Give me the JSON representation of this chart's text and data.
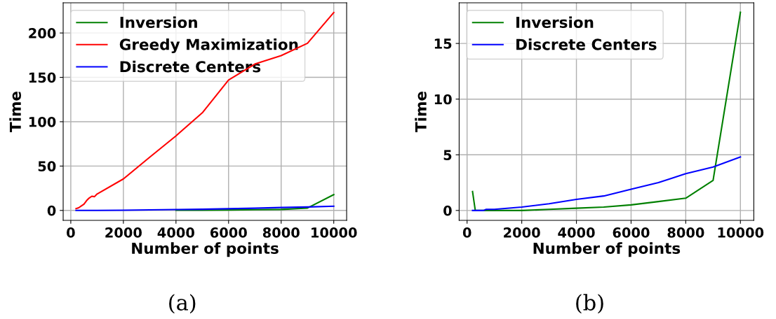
{
  "chart_data": [
    {
      "type": "line",
      "xlabel": "Number of points",
      "ylabel": "Time",
      "annotations": [
        "(a)"
      ],
      "x": [
        200,
        300,
        400,
        500,
        600,
        700,
        800,
        900,
        1000,
        2000,
        3000,
        4000,
        5000,
        6000,
        7000,
        8000,
        9000,
        10000
      ],
      "series": [
        {
          "name": "Inversion",
          "color": "#008000",
          "values": [
            null,
            null,
            null,
            null,
            null,
            null,
            null,
            null,
            null,
            null,
            null,
            0.2,
            0.3,
            0.5,
            0.8,
            1.1,
            2.7,
            17.8
          ]
        },
        {
          "name": "Greedy Maximization",
          "color": "#ff0000",
          "values": [
            2,
            3,
            5,
            7,
            11,
            14,
            16,
            15.5,
            18.5,
            35.5,
            60,
            84,
            110,
            147,
            165,
            174.5,
            188.4,
            223
          ]
        },
        {
          "name": "Discrete Centers",
          "color": "#0000ff",
          "values": [
            0,
            0,
            0,
            0,
            0,
            0.1,
            0.1,
            0.1,
            0.1,
            0.3,
            0.6,
            1.0,
            1.3,
            1.9,
            2.5,
            3.3,
            3.9,
            4.8
          ]
        }
      ],
      "xlim": [
        -290,
        10490
      ],
      "ylim": [
        -11.2,
        234
      ],
      "xticks": [
        0,
        2000,
        4000,
        6000,
        8000,
        10000
      ],
      "yticks": [
        0,
        50,
        100,
        150,
        200
      ],
      "grid": true,
      "legend": "top left",
      "line_style": "solid",
      "marker": "none"
    },
    {
      "type": "line",
      "xlabel": "Number of points",
      "ylabel": "Time",
      "annotations": [
        "(b)"
      ],
      "x": [
        200,
        300,
        400,
        500,
        600,
        700,
        800,
        900,
        1000,
        2000,
        3000,
        4000,
        5000,
        6000,
        7000,
        8000,
        9000,
        10000
      ],
      "series": [
        {
          "name": "Inversion",
          "color": "#008000",
          "values": [
            1.7,
            0,
            0,
            0,
            0,
            0,
            0,
            0,
            0,
            0,
            0.1,
            0.2,
            0.3,
            0.5,
            0.8,
            1.1,
            2.7,
            17.8
          ]
        },
        {
          "name": "Discrete Centers",
          "color": "#0000ff",
          "values": [
            0,
            0,
            0,
            0,
            0,
            0.1,
            0.1,
            0.1,
            0.1,
            0.3,
            0.6,
            1.0,
            1.3,
            1.9,
            2.5,
            3.3,
            3.9,
            4.8
          ]
        }
      ],
      "xlim": [
        -290,
        10490
      ],
      "ylim": [
        -0.89,
        18.65
      ],
      "xticks": [
        0,
        2000,
        4000,
        6000,
        8000,
        10000
      ],
      "yticks": [
        0,
        5,
        10,
        15
      ],
      "grid": true,
      "legend": "top left",
      "line_style": "solid",
      "marker": "none"
    }
  ]
}
